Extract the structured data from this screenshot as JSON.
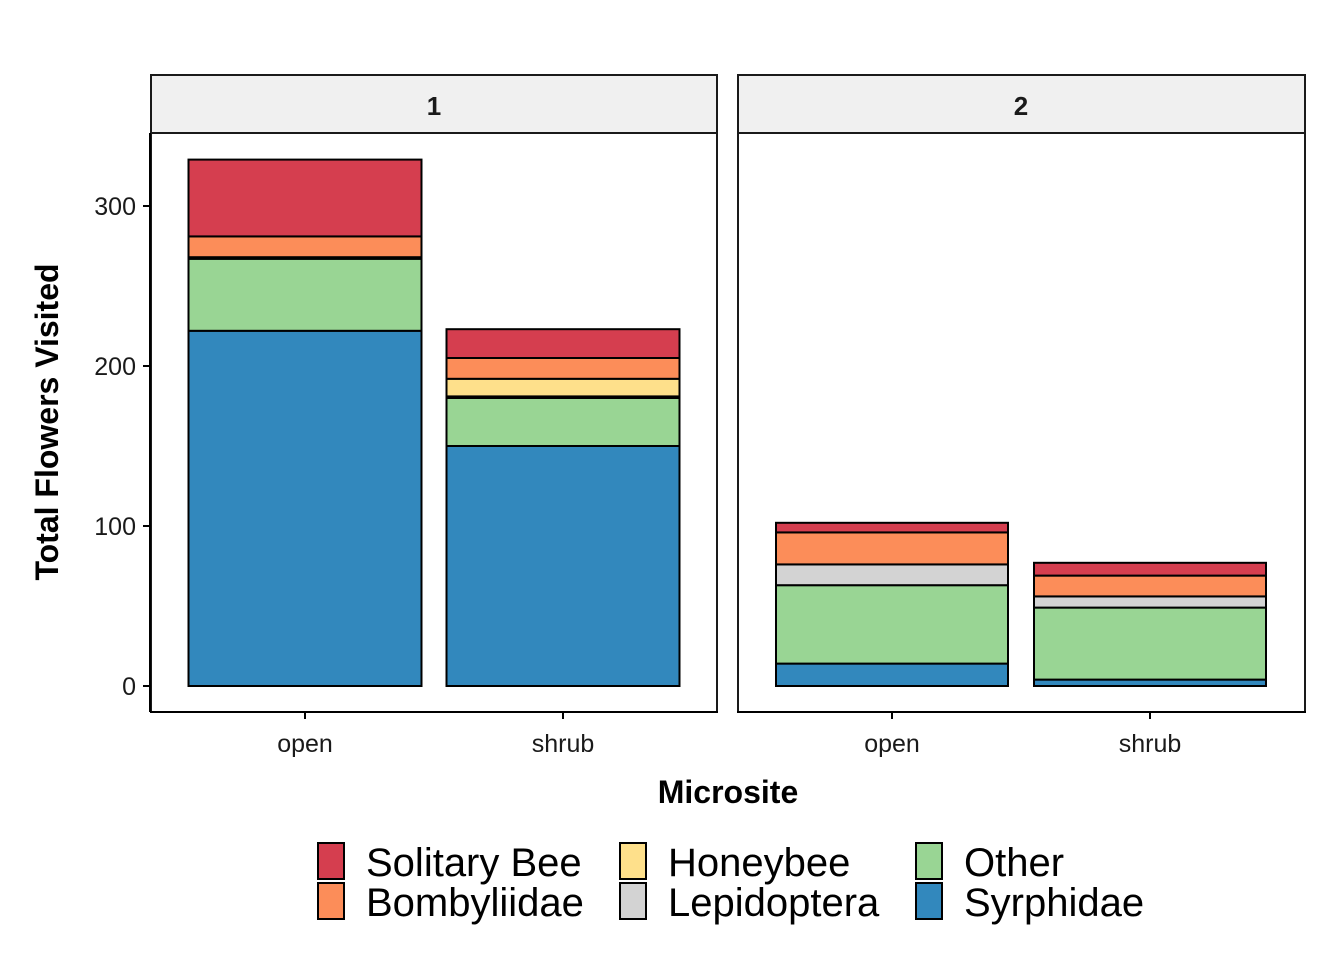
{
  "chart_data": {
    "type": "bar",
    "stacked": true,
    "facets": [
      "1",
      "2"
    ],
    "categories": [
      "open",
      "shrub"
    ],
    "xlabel": "Microsite",
    "ylabel": "Total Flowers Visited",
    "ylim": [
      0,
      350
    ],
    "yticks": [
      "0",
      "100",
      "200",
      "300"
    ],
    "grid": false,
    "legend_position": "bottom",
    "series": [
      {
        "name": "Syrphidae",
        "color": "#3288bd",
        "values": {
          "1": [
            222,
            150
          ],
          "2": [
            14,
            4
          ]
        }
      },
      {
        "name": "Other",
        "color": "#99d594",
        "values": {
          "1": [
            45,
            30
          ],
          "2": [
            49,
            45
          ]
        }
      },
      {
        "name": "Lepidoptera",
        "color": "#d3d3d3",
        "values": {
          "1": [
            0,
            1
          ],
          "2": [
            13,
            7
          ]
        }
      },
      {
        "name": "Honeybee",
        "color": "#fee08b",
        "values": {
          "1": [
            1,
            11
          ],
          "2": [
            0,
            0
          ]
        }
      },
      {
        "name": "Bombyliidae",
        "color": "#fc8d59",
        "values": {
          "1": [
            13,
            13
          ],
          "2": [
            20,
            13
          ]
        }
      },
      {
        "name": "Solitary Bee",
        "color": "#d53e4f",
        "values": {
          "1": [
            48,
            18
          ],
          "2": [
            6,
            8
          ]
        }
      }
    ],
    "legend_order": [
      "Solitary Bee",
      "Bombyliidae",
      "Honeybee",
      "Lepidoptera",
      "Other",
      "Syrphidae"
    ]
  }
}
